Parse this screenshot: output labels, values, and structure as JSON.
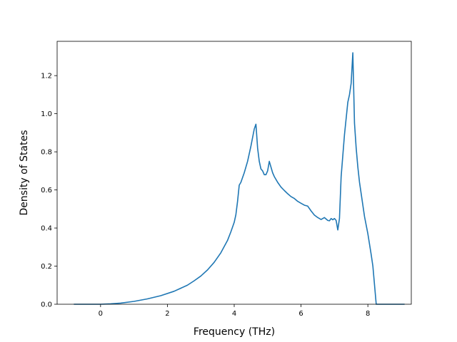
{
  "chart_data": {
    "type": "line",
    "title": "",
    "xlabel": "Frequency (THz)",
    "ylabel": "Density of States",
    "xlim": [
      -1.3,
      9.3
    ],
    "ylim": [
      0,
      1.38
    ],
    "xticks": [
      0,
      2,
      4,
      6,
      8
    ],
    "xtick_labels": [
      "0",
      "2",
      "4",
      "6",
      "8"
    ],
    "yticks": [
      0.0,
      0.2,
      0.4,
      0.6,
      0.8,
      1.0,
      1.2
    ],
    "ytick_labels": [
      "0.0",
      "0.2",
      "0.4",
      "0.6",
      "0.8",
      "1.0",
      "1.2"
    ],
    "grid": false,
    "legend": "none",
    "line_color": "#1f77b4",
    "series": [
      {
        "x": [
          -0.8,
          0.0,
          0.3,
          0.6,
          1.0,
          1.4,
          1.8,
          2.2,
          2.6,
          2.8,
          3.0,
          3.2,
          3.4,
          3.6,
          3.8,
          3.9,
          4.0,
          4.05,
          4.1,
          4.15,
          4.2,
          4.3,
          4.4,
          4.5,
          4.6,
          4.65,
          4.7,
          4.75,
          4.8,
          4.85,
          4.9,
          4.95,
          5.0,
          5.05,
          5.1,
          5.15,
          5.2,
          5.3,
          5.4,
          5.5,
          5.6,
          5.7,
          5.8,
          5.9,
          6.0,
          6.1,
          6.2,
          6.3,
          6.4,
          6.5,
          6.6,
          6.7,
          6.8,
          6.85,
          6.9,
          6.95,
          7.0,
          7.05,
          7.1,
          7.15,
          7.2,
          7.3,
          7.4,
          7.45,
          7.5,
          7.55,
          7.6,
          7.65,
          7.7,
          7.75,
          7.8,
          7.9,
          8.0,
          8.1,
          8.15,
          8.25,
          8.4,
          9.1
        ],
        "y": [
          0.0,
          0.0,
          0.002,
          0.006,
          0.015,
          0.028,
          0.045,
          0.068,
          0.1,
          0.123,
          0.148,
          0.18,
          0.22,
          0.27,
          0.335,
          0.38,
          0.43,
          0.47,
          0.54,
          0.625,
          0.64,
          0.69,
          0.75,
          0.83,
          0.92,
          0.945,
          0.82,
          0.75,
          0.71,
          0.7,
          0.68,
          0.68,
          0.7,
          0.75,
          0.72,
          0.69,
          0.67,
          0.64,
          0.615,
          0.597,
          0.58,
          0.565,
          0.555,
          0.54,
          0.53,
          0.52,
          0.515,
          0.49,
          0.468,
          0.455,
          0.445,
          0.455,
          0.44,
          0.438,
          0.45,
          0.443,
          0.45,
          0.44,
          0.39,
          0.45,
          0.67,
          0.89,
          1.06,
          1.1,
          1.16,
          1.32,
          0.95,
          0.82,
          0.72,
          0.64,
          0.58,
          0.46,
          0.37,
          0.26,
          0.2,
          0.0,
          0.0,
          0.0
        ]
      }
    ]
  }
}
